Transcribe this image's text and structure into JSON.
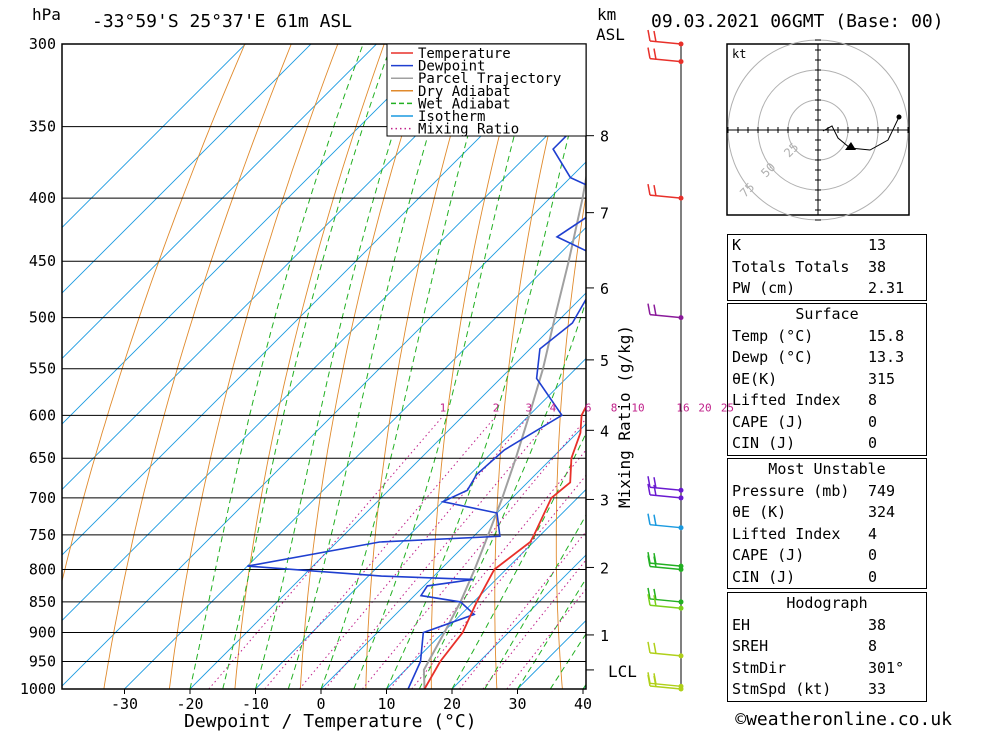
{
  "header": {
    "units_hpa": "hPa",
    "location": "-33°59'S  25°37'E  61m  ASL",
    "km_label": "km",
    "asl_label": "ASL",
    "datetime": "09.03.2021  06GMT  (Base: 00)"
  },
  "chart_data": {
    "type": "skew-t",
    "xlabel": "Dewpoint / Temperature (°C)",
    "ylabel_right": "Mixing Ratio (g/kg)",
    "pressure_ticks": [
      300,
      350,
      400,
      450,
      500,
      550,
      600,
      650,
      700,
      750,
      800,
      850,
      900,
      950,
      1000
    ],
    "temp_ticks": [
      -30,
      -20,
      -10,
      0,
      10,
      20,
      30,
      40
    ],
    "temp_range": [
      -40,
      40
    ],
    "pressure_range": [
      300,
      1000
    ],
    "km_ticks": [
      {
        "km": "1",
        "p": 904
      },
      {
        "km": "2",
        "p": 797
      },
      {
        "km": "3",
        "p": 702
      },
      {
        "km": "4",
        "p": 617
      },
      {
        "km": "5",
        "p": 541
      },
      {
        "km": "6",
        "p": 473
      },
      {
        "km": "7",
        "p": 411
      },
      {
        "km": "8",
        "p": 356
      }
    ],
    "lcl_label": "LCL",
    "lcl_p": 965,
    "mixing_ratio_labels": [
      "1",
      "2",
      "3",
      "4",
      "6",
      "8",
      "10",
      "16",
      "20",
      "25"
    ],
    "mixing_ratio_values": [
      1,
      2,
      3,
      4,
      6,
      8,
      10,
      16,
      20,
      25
    ],
    "mixing_ratio_label_p": 600,
    "legend": [
      "Temperature",
      "Dewpoint",
      "Parcel Trajectory",
      "Dry Adiabat",
      "Wet Adiabat",
      "Isotherm",
      "Mixing Ratio"
    ],
    "legend_colors": [
      "#e8302a",
      "#1f3fd0",
      "#a0a0a0",
      "#e08a2c",
      "#22b022",
      "#1a9ae0",
      "#c0208a"
    ],
    "temperature": [
      {
        "p": 1000,
        "t": 15.8
      },
      {
        "p": 950,
        "t": 14.0
      },
      {
        "p": 900,
        "t": 13.0
      },
      {
        "p": 860,
        "t": 11.0
      },
      {
        "p": 850,
        "t": 10.5
      },
      {
        "p": 800,
        "t": 8.2
      },
      {
        "p": 760,
        "t": 9.5
      },
      {
        "p": 750,
        "t": 9.0
      },
      {
        "p": 700,
        "t": 6.0
      },
      {
        "p": 680,
        "t": 6.5
      },
      {
        "p": 650,
        "t": 3.0
      },
      {
        "p": 620,
        "t": 0.5
      },
      {
        "p": 600,
        "t": -2.0
      },
      {
        "p": 550,
        "t": -5.5
      },
      {
        "p": 500,
        "t": -9.5
      },
      {
        "p": 470,
        "t": -13.0
      },
      {
        "p": 450,
        "t": -13.5
      },
      {
        "p": 430,
        "t": -13.0
      },
      {
        "p": 400,
        "t": -17.5
      },
      {
        "p": 350,
        "t": -26.0
      },
      {
        "p": 300,
        "t": -36.5
      }
    ],
    "dewpoint": [
      {
        "p": 1000,
        "t": 13.3
      },
      {
        "p": 950,
        "t": 11.0
      },
      {
        "p": 900,
        "t": 7.0
      },
      {
        "p": 870,
        "t": 12.0
      },
      {
        "p": 850,
        "t": 8.0
      },
      {
        "p": 840,
        "t": 1.0
      },
      {
        "p": 825,
        "t": 0.5
      },
      {
        "p": 815,
        "t": 6.5
      },
      {
        "p": 810,
        "t": -8.0
      },
      {
        "p": 795,
        "t": -30.0
      },
      {
        "p": 760,
        "t": -13.5
      },
      {
        "p": 752,
        "t": 4.0
      },
      {
        "p": 720,
        "t": 0.0
      },
      {
        "p": 705,
        "t": -10.0
      },
      {
        "p": 690,
        "t": -8.0
      },
      {
        "p": 670,
        "t": -9.0
      },
      {
        "p": 640,
        "t": -8.5
      },
      {
        "p": 600,
        "t": -5.0
      },
      {
        "p": 560,
        "t": -14.5
      },
      {
        "p": 530,
        "t": -18.5
      },
      {
        "p": 505,
        "t": -17.5
      },
      {
        "p": 470,
        "t": -20.0
      },
      {
        "p": 450,
        "t": -21.5
      },
      {
        "p": 430,
        "t": -33.0
      },
      {
        "p": 400,
        "t": -30.0
      },
      {
        "p": 385,
        "t": -40.0
      },
      {
        "p": 365,
        "t": -47.0
      },
      {
        "p": 350,
        "t": -47.0
      },
      {
        "p": 340,
        "t": -40.0
      },
      {
        "p": 330,
        "t": -45.0
      },
      {
        "p": 310,
        "t": -50.0
      },
      {
        "p": 300,
        "t": -53.0
      }
    ],
    "parcel": [
      {
        "p": 1000,
        "t": 15.8
      },
      {
        "p": 965,
        "t": 12.8
      },
      {
        "p": 900,
        "t": 10.2
      },
      {
        "p": 850,
        "t": 8.0
      },
      {
        "p": 800,
        "t": 5.2
      },
      {
        "p": 750,
        "t": 2.0
      },
      {
        "p": 700,
        "t": -1.5
      },
      {
        "p": 650,
        "t": -5.5
      },
      {
        "p": 600,
        "t": -10.0
      },
      {
        "p": 550,
        "t": -15.0
      },
      {
        "p": 500,
        "t": -21.0
      },
      {
        "p": 450,
        "t": -27.5
      },
      {
        "p": 400,
        "t": -35.0
      },
      {
        "p": 350,
        "t": -44.0
      },
      {
        "p": 300,
        "t": -55.0
      }
    ],
    "wind_barbs": [
      {
        "p": 300,
        "color": "#e8302a"
      },
      {
        "p": 310,
        "color": "#e8302a"
      },
      {
        "p": 400,
        "color": "#e8302a"
      },
      {
        "p": 500,
        "color": "#8a1a9a"
      },
      {
        "p": 690,
        "color": "#6a1ad0"
      },
      {
        "p": 700,
        "color": "#6a1ad0"
      },
      {
        "p": 740,
        "color": "#1a9ae0"
      },
      {
        "p": 795,
        "color": "#22b022"
      },
      {
        "p": 800,
        "color": "#22b022"
      },
      {
        "p": 850,
        "color": "#22b022"
      },
      {
        "p": 860,
        "color": "#7ad01a"
      },
      {
        "p": 940,
        "color": "#b0d01a"
      },
      {
        "p": 995,
        "color": "#b0d01a"
      },
      {
        "p": 1000,
        "color": "#b0d01a"
      }
    ]
  },
  "hodograph": {
    "unit": "kt",
    "rings": [
      "25",
      "50",
      "75"
    ]
  },
  "indices": [
    {
      "label": "K",
      "value": "13"
    },
    {
      "label": "Totals Totals",
      "value": "38"
    },
    {
      "label": "PW (cm)",
      "value": "2.31"
    }
  ],
  "surface": {
    "title": "Surface",
    "rows": [
      {
        "label": "Temp (°C)",
        "value": "15.8"
      },
      {
        "label": "Dewp (°C)",
        "value": "13.3"
      },
      {
        "label": "θE(K)",
        "value": "315"
      },
      {
        "label": "Lifted Index",
        "value": "8"
      },
      {
        "label": "CAPE (J)",
        "value": "0"
      },
      {
        "label": "CIN (J)",
        "value": "0"
      }
    ]
  },
  "most_unstable": {
    "title": "Most Unstable",
    "rows": [
      {
        "label": "Pressure (mb)",
        "value": "749"
      },
      {
        "label": "θE (K)",
        "value": "324"
      },
      {
        "label": "Lifted Index",
        "value": "4"
      },
      {
        "label": "CAPE (J)",
        "value": "0"
      },
      {
        "label": "CIN (J)",
        "value": "0"
      }
    ]
  },
  "hodograph_table": {
    "title": "Hodograph",
    "rows": [
      {
        "label": "EH",
        "value": "38"
      },
      {
        "label": "SREH",
        "value": "8"
      },
      {
        "label": "StmDir",
        "value": "301°"
      },
      {
        "label": "StmSpd (kt)",
        "value": "33"
      }
    ]
  },
  "footer": {
    "copyright": "©weatheronline.co.uk"
  }
}
